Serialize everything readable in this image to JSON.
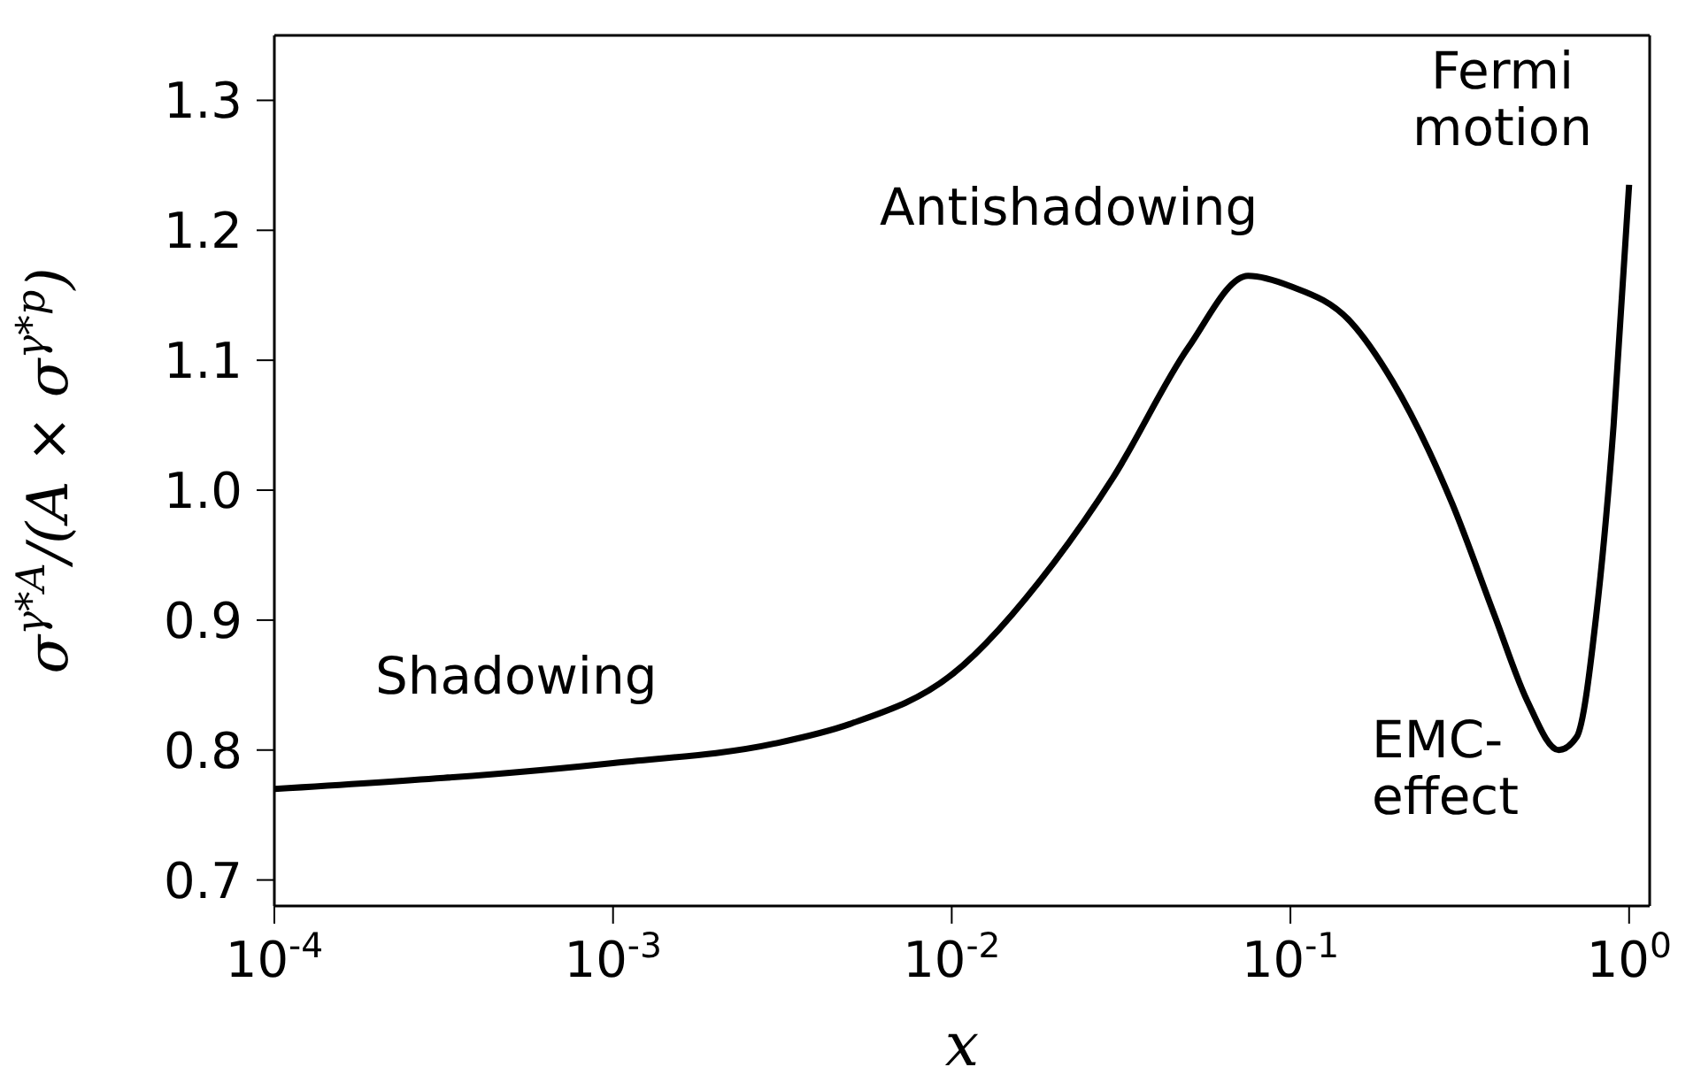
{
  "chart_data": {
    "type": "line",
    "xlabel": "x",
    "ylabel": "σ$^{γ*A}$/(A × σ$^{γ*p}$)",
    "log": "x",
    "marker": "none",
    "line_style": "solid",
    "x": [
      0.0001,
      0.001,
      0.003,
      0.005,
      0.01,
      0.02,
      0.03,
      0.05,
      0.075,
      0.1,
      0.15,
      0.2,
      0.3,
      0.4,
      0.5,
      0.62,
      0.7,
      0.8,
      0.9,
      1.0
    ],
    "series": [
      {
        "color": "#000000",
        "values": [
          0.77,
          0.79,
          0.805,
          0.82,
          0.858,
          0.944,
          1.01,
          1.11,
          1.165,
          1.157,
          1.13,
          1.084,
          0.99,
          0.904,
          0.838,
          0.8,
          0.81,
          0.904,
          1.05,
          1.235
        ]
      }
    ],
    "xlim": [
      0.0001,
      1.15
    ],
    "xticks": [
      {
        "value": 0.0001,
        "label": "10$^{-4}$"
      },
      {
        "value": 0.001,
        "label": "10$^{-3}$"
      },
      {
        "value": 0.01,
        "label": "10$^{-2}$"
      },
      {
        "value": 0.1,
        "label": "10$^{-1}$"
      },
      {
        "value": 1,
        "label": "10$^{0}$"
      }
    ],
    "ylim": [
      0.68,
      1.35
    ],
    "yticks": [
      0.7,
      0.8,
      0.9,
      {
        "value": 1.0,
        "label": "1.0"
      },
      1.1,
      1.2,
      1.3
    ],
    "annotations": [
      "Shadowing",
      "Antishadowing",
      "Fermi\nmotion",
      "EMC-\neffect"
    ]
  }
}
